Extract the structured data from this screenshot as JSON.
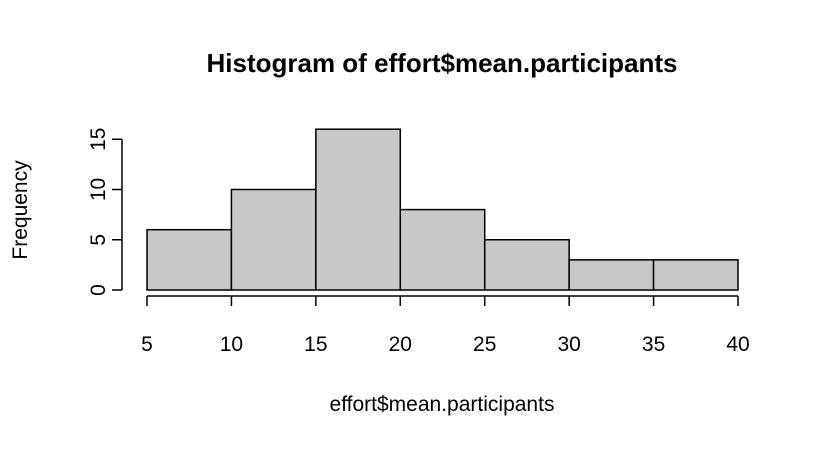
{
  "chart_data": {
    "type": "bar",
    "title": "Histogram of effort$mean.participants",
    "xlabel": "effort$mean.participants",
    "ylabel": "Frequency",
    "bins": [
      {
        "start": 5,
        "end": 10,
        "count": 6
      },
      {
        "start": 10,
        "end": 15,
        "count": 10
      },
      {
        "start": 15,
        "end": 20,
        "count": 16
      },
      {
        "start": 20,
        "end": 25,
        "count": 8
      },
      {
        "start": 25,
        "end": 30,
        "count": 5
      },
      {
        "start": 30,
        "end": 35,
        "count": 3
      },
      {
        "start": 35,
        "end": 40,
        "count": 3
      }
    ],
    "xticks": [
      "5",
      "10",
      "15",
      "20",
      "25",
      "30",
      "35",
      "40"
    ],
    "yticks": [
      "0",
      "5",
      "10",
      "15"
    ],
    "xlim": [
      5,
      40
    ],
    "ylim": [
      0,
      16
    ],
    "bar_color": "#c8c8c8",
    "grid": false
  }
}
